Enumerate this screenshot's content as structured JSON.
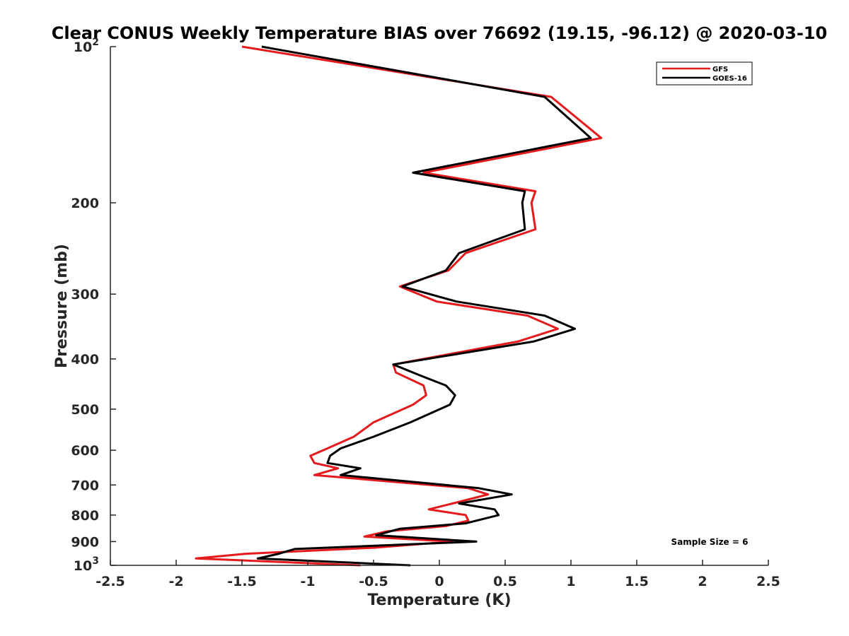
{
  "chart_data": {
    "type": "line",
    "title": "Clear CONUS Weekly Temperature BIAS over 76692 (19.15, -96.12) @ 2020-03-10",
    "xlabel": "Temperature (K)",
    "ylabel": "Pressure (mb)",
    "xlim": [
      -2.5,
      2.5
    ],
    "ylim": [
      100,
      1000
    ],
    "y_scale": "log",
    "y_reversed": true,
    "x_ticks": [
      {
        "value": -2.5,
        "label": "-2.5"
      },
      {
        "value": -2,
        "label": "-2"
      },
      {
        "value": -1.5,
        "label": "-1.5"
      },
      {
        "value": -1,
        "label": "-1"
      },
      {
        "value": -0.5,
        "label": "-0.5"
      },
      {
        "value": 0,
        "label": "0"
      },
      {
        "value": 0.5,
        "label": "0.5"
      },
      {
        "value": 1,
        "label": "1"
      },
      {
        "value": 1.5,
        "label": "1.5"
      },
      {
        "value": 2,
        "label": "2"
      },
      {
        "value": 2.5,
        "label": "2.5"
      }
    ],
    "y_ticks": [
      {
        "value": 100,
        "base": "10",
        "exp": "2"
      },
      {
        "value": 200,
        "label": "200"
      },
      {
        "value": 300,
        "label": "300"
      },
      {
        "value": 400,
        "label": "400"
      },
      {
        "value": 500,
        "label": "500"
      },
      {
        "value": 600,
        "label": "600"
      },
      {
        "value": 700,
        "label": "700"
      },
      {
        "value": 800,
        "label": "800"
      },
      {
        "value": 900,
        "label": "900"
      },
      {
        "value": 1000,
        "base": "10",
        "exp": "3"
      }
    ],
    "grid": false,
    "legend_position": "top-right",
    "series": [
      {
        "name": "GFS",
        "color": "#e41a1c",
        "points": [
          [
            -1.5,
            100
          ],
          [
            0.85,
            125
          ],
          [
            1.23,
            150
          ],
          [
            -0.12,
            175
          ],
          [
            0.73,
            190
          ],
          [
            0.7,
            200
          ],
          [
            0.73,
            225
          ],
          [
            0.2,
            250
          ],
          [
            0.07,
            270
          ],
          [
            -0.3,
            290
          ],
          [
            -0.02,
            310
          ],
          [
            0.67,
            330
          ],
          [
            0.9,
            350
          ],
          [
            0.6,
            370
          ],
          [
            -0.35,
            410
          ],
          [
            -0.33,
            425
          ],
          [
            -0.12,
            450
          ],
          [
            -0.1,
            470
          ],
          [
            -0.2,
            490
          ],
          [
            -0.5,
            530
          ],
          [
            -0.65,
            565
          ],
          [
            -0.85,
            595
          ],
          [
            -0.98,
            615
          ],
          [
            -0.95,
            635
          ],
          [
            -0.77,
            650
          ],
          [
            -0.95,
            670
          ],
          [
            0.22,
            710
          ],
          [
            0.37,
            730
          ],
          [
            0.1,
            760
          ],
          [
            -0.08,
            780
          ],
          [
            0.2,
            800
          ],
          [
            0.22,
            820
          ],
          [
            0.05,
            840
          ],
          [
            -0.4,
            860
          ],
          [
            -0.57,
            880
          ],
          [
            0.1,
            900
          ],
          [
            -0.5,
            925
          ],
          [
            -1.47,
            950
          ],
          [
            -1.85,
            970
          ],
          [
            -0.6,
            1000
          ]
        ]
      },
      {
        "name": "GOES-16",
        "color": "#000000",
        "points": [
          [
            -1.35,
            100
          ],
          [
            0.8,
            125
          ],
          [
            1.15,
            150
          ],
          [
            -0.2,
            175
          ],
          [
            0.65,
            190
          ],
          [
            0.63,
            200
          ],
          [
            0.65,
            225
          ],
          [
            0.15,
            250
          ],
          [
            0.05,
            270
          ],
          [
            -0.28,
            290
          ],
          [
            0.13,
            310
          ],
          [
            0.8,
            330
          ],
          [
            1.03,
            350
          ],
          [
            0.72,
            370
          ],
          [
            -0.35,
            410
          ],
          [
            -0.15,
            430
          ],
          [
            0.05,
            450
          ],
          [
            0.12,
            470
          ],
          [
            0.08,
            490
          ],
          [
            -0.22,
            530
          ],
          [
            -0.5,
            565
          ],
          [
            -0.75,
            595
          ],
          [
            -0.83,
            615
          ],
          [
            -0.85,
            635
          ],
          [
            -0.6,
            650
          ],
          [
            -0.75,
            670
          ],
          [
            0.3,
            710
          ],
          [
            0.55,
            730
          ],
          [
            0.15,
            760
          ],
          [
            0.42,
            780
          ],
          [
            0.45,
            800
          ],
          [
            0.2,
            830
          ],
          [
            -0.3,
            850
          ],
          [
            -0.48,
            875
          ],
          [
            0.28,
            900
          ],
          [
            -1.1,
            930
          ],
          [
            -1.22,
            950
          ],
          [
            -1.38,
            970
          ],
          [
            -0.22,
            1000
          ]
        ]
      }
    ],
    "annotations": [
      {
        "text": "Sample Size = 6",
        "position": "bottom-right"
      }
    ]
  }
}
